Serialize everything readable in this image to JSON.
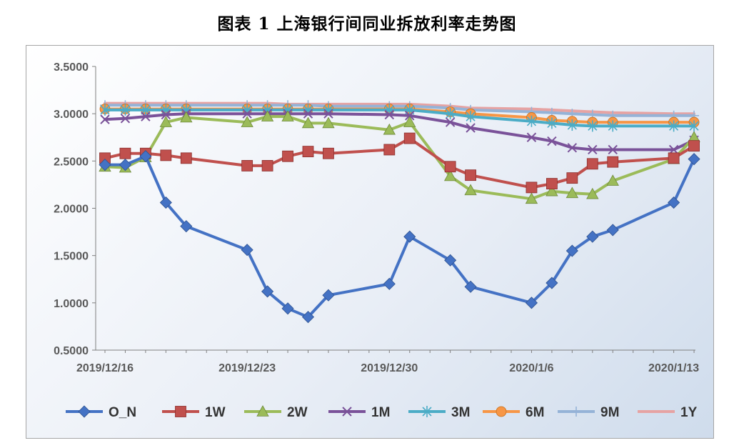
{
  "chart_data": {
    "type": "line",
    "title": "图表 1  上海银行间同业拆放利率走势图",
    "xlabel": "",
    "ylabel": "",
    "ylim": [
      0.5,
      3.5
    ],
    "y_ticks": [
      "3.5000",
      "3.0000",
      "2.5000",
      "2.0000",
      "1.5000",
      "1.0000",
      "0.5000"
    ],
    "x_tick_labels": [
      "2019/12/16",
      "2019/12/23",
      "2019/12/30",
      "2020/1/6",
      "2020/1/13"
    ],
    "x_tick_positions": [
      0,
      7,
      14,
      21,
      28
    ],
    "x": [
      0,
      1,
      2,
      3,
      4,
      7,
      8,
      9,
      10,
      11,
      14,
      15,
      17,
      18,
      21,
      22,
      23,
      24,
      25,
      28,
      29
    ],
    "series": [
      {
        "name": "O_N",
        "color": "#4472c4",
        "marker": "diamond",
        "values": [
          2.46,
          2.46,
          2.55,
          2.06,
          1.81,
          1.56,
          1.12,
          0.94,
          0.85,
          1.08,
          1.2,
          1.7,
          1.45,
          1.17,
          1.0,
          1.21,
          1.55,
          1.7,
          1.77,
          2.06,
          2.52
        ]
      },
      {
        "name": "1W",
        "color": "#c0504d",
        "marker": "square",
        "values": [
          2.53,
          2.58,
          2.58,
          2.56,
          2.53,
          2.45,
          2.45,
          2.55,
          2.6,
          2.58,
          2.62,
          2.74,
          2.44,
          2.35,
          2.22,
          2.26,
          2.32,
          2.47,
          2.49,
          2.53,
          2.66
        ]
      },
      {
        "name": "2W",
        "color": "#9bbb59",
        "marker": "triangle",
        "values": [
          2.44,
          2.43,
          2.54,
          2.91,
          2.96,
          2.91,
          2.97,
          2.97,
          2.9,
          2.9,
          2.83,
          2.91,
          2.34,
          2.19,
          2.1,
          2.18,
          2.16,
          2.15,
          2.29,
          2.52,
          2.75
        ]
      },
      {
        "name": "1M",
        "color": "#7a5299",
        "marker": "x",
        "values": [
          2.94,
          2.95,
          2.97,
          2.99,
          3.0,
          3.0,
          3.0,
          3.0,
          3.0,
          3.0,
          2.99,
          2.98,
          2.91,
          2.85,
          2.75,
          2.71,
          2.64,
          2.62,
          2.62,
          2.62,
          2.72
        ]
      },
      {
        "name": "3M",
        "color": "#4bacc6",
        "marker": "asterisk",
        "values": [
          3.04,
          3.04,
          3.04,
          3.04,
          3.04,
          3.04,
          3.04,
          3.04,
          3.04,
          3.04,
          3.04,
          3.04,
          3.0,
          2.97,
          2.92,
          2.9,
          2.88,
          2.87,
          2.87,
          2.87,
          2.87
        ]
      },
      {
        "name": "6M",
        "color": "#f79646",
        "marker": "circle",
        "values": [
          3.05,
          3.05,
          3.05,
          3.05,
          3.05,
          3.05,
          3.05,
          3.05,
          3.05,
          3.05,
          3.05,
          3.05,
          3.02,
          3.0,
          2.96,
          2.93,
          2.92,
          2.91,
          2.91,
          2.91,
          2.91
        ]
      },
      {
        "name": "9M",
        "color": "#95b3d7",
        "marker": "plus",
        "values": [
          3.09,
          3.09,
          3.09,
          3.09,
          3.09,
          3.09,
          3.09,
          3.09,
          3.09,
          3.08,
          3.08,
          3.08,
          3.06,
          3.04,
          3.02,
          3.01,
          3.0,
          2.99,
          2.98,
          2.98,
          2.98
        ]
      },
      {
        "name": "1Y",
        "color": "#e6a3a3",
        "marker": "none",
        "values": [
          3.11,
          3.11,
          3.11,
          3.11,
          3.11,
          3.11,
          3.11,
          3.1,
          3.1,
          3.1,
          3.1,
          3.1,
          3.08,
          3.06,
          3.05,
          3.04,
          3.03,
          3.02,
          3.01,
          3.0,
          3.0
        ]
      }
    ],
    "grid": false,
    "legend_position": "bottom"
  }
}
